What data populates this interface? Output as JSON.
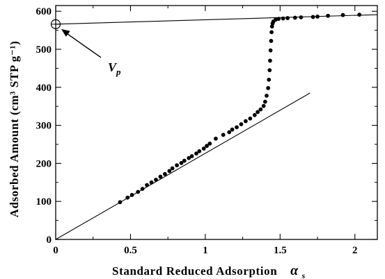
{
  "chart_data": {
    "type": "scatter",
    "xlabel": "Standard Reduced Adsorption",
    "xlabel_symbol": "α",
    "xlabel_symbol_sub": "s",
    "ylabel": "Adsorbed Amount (cm³ STP g⁻¹)",
    "xlim": [
      0,
      2.15
    ],
    "ylim": [
      0,
      615
    ],
    "x_ticks": [
      0,
      0.5,
      1,
      1.5,
      2
    ],
    "x_tick_labels": [
      "0",
      "0.5",
      "1",
      "1.5",
      "2"
    ],
    "y_ticks": [
      0,
      100,
      200,
      300,
      400,
      500,
      600
    ],
    "y_tick_labels": [
      "0",
      "100",
      "200",
      "300",
      "400",
      "500",
      "600"
    ],
    "grid": false,
    "series": [
      {
        "marker": "filled-circle",
        "x": [
          0.43,
          0.48,
          0.51,
          0.55,
          0.58,
          0.61,
          0.64,
          0.67,
          0.7,
          0.73,
          0.76,
          0.78,
          0.81,
          0.84,
          0.86,
          0.89,
          0.91,
          0.94,
          0.96,
          0.99,
          1.01,
          1.03,
          1.07,
          1.12,
          1.16,
          1.18,
          1.21,
          1.24,
          1.27,
          1.3,
          1.33,
          1.35,
          1.37,
          1.39,
          1.4,
          1.41,
          1.42,
          1.425,
          1.43,
          1.433,
          1.436,
          1.44,
          1.443,
          1.446,
          1.45,
          1.455,
          1.47,
          1.49,
          1.52,
          1.55,
          1.6,
          1.64,
          1.72,
          1.75,
          1.82,
          1.92,
          2.03
        ],
        "y": [
          98,
          110,
          117,
          125,
          133,
          143,
          150,
          157,
          165,
          172,
          180,
          187,
          195,
          201,
          207,
          214,
          219,
          226,
          232,
          239,
          246,
          252,
          265,
          275,
          282,
          289,
          295,
          303,
          311,
          318,
          327,
          335,
          342,
          351,
          362,
          378,
          398,
          420,
          445,
          470,
          497,
          522,
          545,
          560,
          568,
          573,
          578,
          580,
          581,
          582,
          583,
          584,
          585,
          586,
          588,
          590,
          591
        ]
      }
    ],
    "reference_lines": [
      {
        "name": "",
        "x": [
          0,
          1.7
        ],
        "y": [
          0,
          385
        ]
      },
      {
        "name": "",
        "x": [
          0,
          2.15
        ],
        "y": [
          566,
          591
        ]
      }
    ],
    "annotations": [
      {
        "text": "V",
        "sub": "p",
        "x": 0,
        "y": 566,
        "marker": "open-circle",
        "arrow": true
      }
    ]
  }
}
